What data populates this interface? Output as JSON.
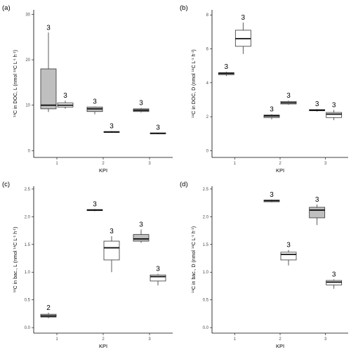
{
  "colors": {
    "grey_box": "#bfbfbf",
    "white_box": "#ffffff",
    "stroke": "#333333",
    "axis": "#000000"
  },
  "chart_data": [
    {
      "type": "box",
      "panel_label": "(a)",
      "xlabel": "KPI",
      "ylabel_parts": [
        "14",
        "C in DOC, L (nmol ",
        "14",
        "C L",
        "-1",
        " h",
        "-1",
        ")"
      ],
      "ylim": [
        -1.5,
        31
      ],
      "yticks": [
        0,
        10,
        20,
        30
      ],
      "yticklabels": [
        "0",
        "10",
        "20",
        "30"
      ],
      "categories": [
        "1",
        "2",
        "3"
      ],
      "boxes": [
        {
          "group": 1,
          "pos": 0,
          "fill": "grey",
          "min": 8.5,
          "q1": 9.2,
          "median": 10.0,
          "q3": 18.0,
          "max": 26.0,
          "n": "3"
        },
        {
          "group": 1,
          "pos": 1,
          "fill": "white",
          "min": 9.2,
          "q1": 9.6,
          "median": 10.0,
          "q3": 10.5,
          "max": 11.0,
          "n": "3"
        },
        {
          "group": 2,
          "pos": 0,
          "fill": "grey",
          "min": 8.0,
          "q1": 8.6,
          "median": 9.2,
          "q3": 9.6,
          "max": 9.7,
          "n": "3"
        },
        {
          "group": 2,
          "pos": 1,
          "fill": "white",
          "min": 3.9,
          "q1": 4.0,
          "median": 4.1,
          "q3": 4.2,
          "max": 4.3,
          "n": "3"
        },
        {
          "group": 3,
          "pos": 0,
          "fill": "grey",
          "min": 8.4,
          "q1": 8.6,
          "median": 8.9,
          "q3": 9.2,
          "max": 9.4,
          "n": "3"
        },
        {
          "group": 3,
          "pos": 1,
          "fill": "white",
          "min": 3.6,
          "q1": 3.7,
          "median": 3.8,
          "q3": 3.9,
          "max": 4.0,
          "n": "3"
        }
      ]
    },
    {
      "type": "box",
      "panel_label": "(b)",
      "xlabel": "KPI",
      "ylabel_parts": [
        "14",
        "C in DOC, D (nmol ",
        "14",
        "C L",
        "-1",
        " h",
        "-1",
        ")"
      ],
      "ylim": [
        -0.4,
        8.3
      ],
      "yticks": [
        0,
        2,
        4,
        6,
        8
      ],
      "yticklabels": [
        "0",
        "2",
        "4",
        "6",
        "8"
      ],
      "categories": [
        "1",
        "2",
        "3"
      ],
      "boxes": [
        {
          "group": 1,
          "pos": 0,
          "fill": "grey",
          "min": 4.4,
          "q1": 4.48,
          "median": 4.55,
          "q3": 4.6,
          "max": 4.65,
          "n": "3"
        },
        {
          "group": 1,
          "pos": 1,
          "fill": "white",
          "min": 5.7,
          "q1": 6.15,
          "median": 6.6,
          "q3": 7.1,
          "max": 7.55,
          "n": "3"
        },
        {
          "group": 2,
          "pos": 0,
          "fill": "grey",
          "min": 1.85,
          "q1": 1.95,
          "median": 2.05,
          "q3": 2.1,
          "max": 2.15,
          "n": "3"
        },
        {
          "group": 2,
          "pos": 1,
          "fill": "white",
          "min": 2.7,
          "q1": 2.75,
          "median": 2.82,
          "q3": 2.9,
          "max": 2.95,
          "n": "3"
        },
        {
          "group": 3,
          "pos": 0,
          "fill": "grey",
          "min": 2.3,
          "q1": 2.35,
          "median": 2.38,
          "q3": 2.42,
          "max": 2.45,
          "n": "3"
        },
        {
          "group": 3,
          "pos": 1,
          "fill": "white",
          "min": 1.8,
          "q1": 1.95,
          "median": 2.15,
          "q3": 2.25,
          "max": 2.4,
          "n": "3"
        }
      ]
    },
    {
      "type": "box",
      "panel_label": "(c)",
      "xlabel": "KPI",
      "ylabel_parts": [
        "14",
        "C in bac., L (nmol ",
        "14",
        "C L",
        "-1",
        " h",
        "-1",
        ")"
      ],
      "ylim": [
        -0.1,
        2.55
      ],
      "yticks": [
        0.0,
        0.5,
        1.0,
        1.5,
        2.0,
        2.5
      ],
      "yticklabels": [
        "0.0",
        "0.5",
        "1.0",
        "1.5",
        "2.0",
        "2.5"
      ],
      "categories": [
        "1",
        "2",
        "3"
      ],
      "boxes": [
        {
          "group": 1,
          "pos": 0,
          "fill": "grey",
          "min": 0.17,
          "q1": 0.19,
          "median": 0.21,
          "q3": 0.24,
          "max": 0.27,
          "n": "2"
        },
        {
          "group": 2,
          "pos": 0,
          "fill": "grey",
          "min": 2.1,
          "q1": 2.11,
          "median": 2.12,
          "q3": 2.13,
          "max": 2.14,
          "n": "3"
        },
        {
          "group": 2,
          "pos": 1,
          "fill": "white",
          "min": 1.0,
          "q1": 1.22,
          "median": 1.44,
          "q3": 1.56,
          "max": 1.65,
          "n": "3"
        },
        {
          "group": 3,
          "pos": 0,
          "fill": "grey",
          "min": 1.53,
          "q1": 1.56,
          "median": 1.6,
          "q3": 1.68,
          "max": 1.77,
          "n": "3"
        },
        {
          "group": 3,
          "pos": 1,
          "fill": "white",
          "min": 0.76,
          "q1": 0.84,
          "median": 0.92,
          "q3": 0.95,
          "max": 0.97,
          "n": "3"
        }
      ]
    },
    {
      "type": "box",
      "panel_label": "(d)",
      "xlabel": "KPI",
      "ylabel_parts": [
        "14",
        "C in bac., D (nmol ",
        "14",
        "C L",
        "-1",
        " h",
        "-1",
        ")"
      ],
      "ylim": [
        -0.1,
        2.55
      ],
      "yticks": [
        0.0,
        0.5,
        1.0,
        1.5,
        2.0,
        2.5
      ],
      "yticklabels": [
        "0.0",
        "0.5",
        "1.0",
        "1.5",
        "2.0",
        "2.5"
      ],
      "categories": [
        "1",
        "2",
        "3"
      ],
      "boxes": [
        {
          "group": 2,
          "pos": 0,
          "fill": "grey",
          "min": 2.26,
          "q1": 2.27,
          "median": 2.29,
          "q3": 2.3,
          "max": 2.31,
          "n": "3"
        },
        {
          "group": 2,
          "pos": 1,
          "fill": "white",
          "min": 1.12,
          "q1": 1.22,
          "median": 1.32,
          "q3": 1.36,
          "max": 1.4,
          "n": "3"
        },
        {
          "group": 3,
          "pos": 0,
          "fill": "grey",
          "min": 1.85,
          "q1": 1.98,
          "median": 2.12,
          "q3": 2.17,
          "max": 2.22,
          "n": "3"
        },
        {
          "group": 3,
          "pos": 1,
          "fill": "white",
          "min": 0.7,
          "q1": 0.77,
          "median": 0.82,
          "q3": 0.85,
          "max": 0.87,
          "n": "3"
        }
      ]
    }
  ]
}
